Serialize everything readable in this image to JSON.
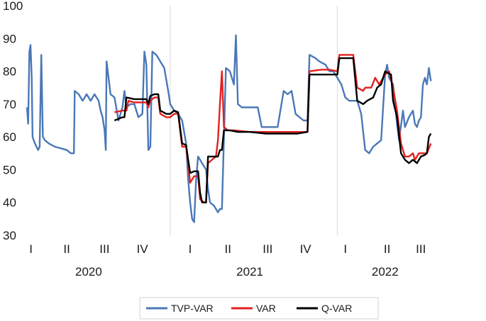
{
  "chart_data": {
    "type": "line",
    "title": "",
    "xlabel": "",
    "ylabel": "",
    "ylim": [
      30,
      100
    ],
    "yticks": [
      30,
      40,
      50,
      60,
      70,
      80,
      90,
      100
    ],
    "x_range": [
      0,
      11.5
    ],
    "quarter_ticks": [
      {
        "label": "I",
        "x": 0.1
      },
      {
        "label": "II",
        "x": 1.0
      },
      {
        "label": "III",
        "x": 1.95
      },
      {
        "label": "IV",
        "x": 2.9
      },
      {
        "label": "I",
        "x": 4.1
      },
      {
        "label": "II",
        "x": 5.05
      },
      {
        "label": "III",
        "x": 6.05
      },
      {
        "label": "IV",
        "x": 7.0
      },
      {
        "label": "I",
        "x": 8.0
      },
      {
        "label": "II",
        "x": 9.05
      },
      {
        "label": "III",
        "x": 9.9
      }
    ],
    "year_labels": [
      {
        "label": "2020",
        "x": 1.55
      },
      {
        "label": "2021",
        "x": 5.6
      },
      {
        "label": "2022",
        "x": 9.0
      }
    ],
    "year_dividers": [
      3.6,
      7.8
    ],
    "grid": false,
    "legend_position": "bottom",
    "series": [
      {
        "name": "TVP-VAR",
        "color": "#4a78b8",
        "points": [
          [
            0.0,
            69
          ],
          [
            0.03,
            64
          ],
          [
            0.06,
            86
          ],
          [
            0.09,
            88
          ],
          [
            0.12,
            78
          ],
          [
            0.14,
            60
          ],
          [
            0.2,
            58
          ],
          [
            0.28,
            56
          ],
          [
            0.32,
            57
          ],
          [
            0.36,
            85
          ],
          [
            0.4,
            60
          ],
          [
            0.45,
            59
          ],
          [
            0.55,
            58
          ],
          [
            0.7,
            57
          ],
          [
            0.85,
            56.5
          ],
          [
            1.0,
            56
          ],
          [
            1.1,
            55
          ],
          [
            1.18,
            55
          ],
          [
            1.2,
            74
          ],
          [
            1.3,
            73
          ],
          [
            1.4,
            71
          ],
          [
            1.5,
            73
          ],
          [
            1.6,
            71
          ],
          [
            1.7,
            73
          ],
          [
            1.8,
            71
          ],
          [
            1.85,
            68
          ],
          [
            1.9,
            66
          ],
          [
            1.95,
            62
          ],
          [
            1.98,
            56
          ],
          [
            2.0,
            83
          ],
          [
            2.05,
            78
          ],
          [
            2.1,
            73
          ],
          [
            2.2,
            72
          ],
          [
            2.3,
            65
          ],
          [
            2.4,
            69
          ],
          [
            2.45,
            74
          ],
          [
            2.5,
            69
          ],
          [
            2.6,
            70
          ],
          [
            2.7,
            70
          ],
          [
            2.8,
            66
          ],
          [
            2.9,
            67
          ],
          [
            2.95,
            86
          ],
          [
            3.0,
            82
          ],
          [
            3.05,
            56
          ],
          [
            3.1,
            57
          ],
          [
            3.15,
            86
          ],
          [
            3.25,
            85
          ],
          [
            3.35,
            83
          ],
          [
            3.45,
            81
          ],
          [
            3.55,
            74
          ],
          [
            3.6,
            70
          ],
          [
            3.7,
            68
          ],
          [
            3.8,
            67
          ],
          [
            3.9,
            65
          ],
          [
            4.0,
            58
          ],
          [
            4.05,
            47
          ],
          [
            4.1,
            40
          ],
          [
            4.15,
            35
          ],
          [
            4.2,
            34
          ],
          [
            4.25,
            47
          ],
          [
            4.3,
            54
          ],
          [
            4.4,
            52
          ],
          [
            4.5,
            50
          ],
          [
            4.55,
            44
          ],
          [
            4.6,
            40
          ],
          [
            4.7,
            39
          ],
          [
            4.8,
            37
          ],
          [
            4.85,
            38
          ],
          [
            4.9,
            38
          ],
          [
            5.0,
            81
          ],
          [
            5.1,
            80
          ],
          [
            5.2,
            76
          ],
          [
            5.25,
            91
          ],
          [
            5.3,
            70
          ],
          [
            5.4,
            69
          ],
          [
            5.6,
            69
          ],
          [
            5.8,
            69
          ],
          [
            5.9,
            63
          ],
          [
            6.1,
            63
          ],
          [
            6.3,
            63
          ],
          [
            6.45,
            74
          ],
          [
            6.55,
            73
          ],
          [
            6.65,
            74
          ],
          [
            6.75,
            67
          ],
          [
            6.85,
            66
          ],
          [
            6.95,
            65
          ],
          [
            7.05,
            65
          ],
          [
            7.1,
            85
          ],
          [
            7.25,
            84
          ],
          [
            7.35,
            83
          ],
          [
            7.5,
            82
          ],
          [
            7.6,
            80
          ],
          [
            7.7,
            80
          ],
          [
            7.8,
            78
          ],
          [
            7.9,
            76
          ],
          [
            8.0,
            72
          ],
          [
            8.1,
            71
          ],
          [
            8.2,
            71
          ],
          [
            8.3,
            71
          ],
          [
            8.4,
            67
          ],
          [
            8.5,
            56
          ],
          [
            8.6,
            55
          ],
          [
            8.7,
            57
          ],
          [
            8.8,
            58
          ],
          [
            8.9,
            59
          ],
          [
            9.0,
            79
          ],
          [
            9.05,
            82
          ],
          [
            9.1,
            78
          ],
          [
            9.2,
            76
          ],
          [
            9.3,
            64
          ],
          [
            9.35,
            59
          ],
          [
            9.45,
            68
          ],
          [
            9.5,
            63
          ],
          [
            9.6,
            66
          ],
          [
            9.7,
            68
          ],
          [
            9.75,
            64
          ],
          [
            9.8,
            63
          ],
          [
            9.85,
            65
          ],
          [
            9.9,
            66
          ],
          [
            9.95,
            76
          ],
          [
            10.0,
            78
          ],
          [
            10.05,
            76
          ],
          [
            10.1,
            81
          ],
          [
            10.15,
            77
          ]
        ]
      },
      {
        "name": "VAR",
        "color": "#e32020",
        "points": [
          [
            2.2,
            67.5
          ],
          [
            2.4,
            68
          ],
          [
            2.5,
            68
          ],
          [
            2.55,
            71
          ],
          [
            2.7,
            70.5
          ],
          [
            2.85,
            70.5
          ],
          [
            3.0,
            70.5
          ],
          [
            3.05,
            69
          ],
          [
            3.1,
            71
          ],
          [
            3.2,
            72
          ],
          [
            3.3,
            72
          ],
          [
            3.35,
            67
          ],
          [
            3.5,
            66
          ],
          [
            3.6,
            66
          ],
          [
            3.7,
            67
          ],
          [
            3.8,
            67
          ],
          [
            3.9,
            57
          ],
          [
            4.0,
            57
          ],
          [
            4.05,
            52
          ],
          [
            4.1,
            46
          ],
          [
            4.2,
            48
          ],
          [
            4.3,
            48
          ],
          [
            4.35,
            41
          ],
          [
            4.45,
            40
          ],
          [
            4.5,
            40
          ],
          [
            4.55,
            52
          ],
          [
            4.65,
            53
          ],
          [
            4.75,
            54
          ],
          [
            4.8,
            59
          ],
          [
            4.85,
            70
          ],
          [
            4.9,
            80
          ],
          [
            4.95,
            63
          ],
          [
            5.05,
            62
          ],
          [
            5.2,
            62
          ],
          [
            5.6,
            61.5
          ],
          [
            6.0,
            61.5
          ],
          [
            6.4,
            61.5
          ],
          [
            6.8,
            61.5
          ],
          [
            7.05,
            61.5
          ],
          [
            7.1,
            80
          ],
          [
            7.4,
            80.5
          ],
          [
            7.6,
            80.5
          ],
          [
            7.8,
            80
          ],
          [
            7.85,
            85
          ],
          [
            8.0,
            85
          ],
          [
            8.2,
            85
          ],
          [
            8.3,
            75
          ],
          [
            8.45,
            74
          ],
          [
            8.5,
            75
          ],
          [
            8.65,
            75
          ],
          [
            8.75,
            78
          ],
          [
            8.85,
            76
          ],
          [
            9.0,
            79
          ],
          [
            9.1,
            80
          ],
          [
            9.2,
            75
          ],
          [
            9.3,
            68
          ],
          [
            9.4,
            58
          ],
          [
            9.5,
            54
          ],
          [
            9.6,
            54
          ],
          [
            9.7,
            55
          ],
          [
            9.75,
            53
          ],
          [
            9.85,
            55
          ],
          [
            9.95,
            55
          ],
          [
            10.05,
            55
          ],
          [
            10.15,
            58
          ]
        ]
      },
      {
        "name": "Q-VAR",
        "color": "#000000",
        "points": [
          [
            2.2,
            65
          ],
          [
            2.3,
            65.5
          ],
          [
            2.4,
            66
          ],
          [
            2.45,
            66
          ],
          [
            2.5,
            72
          ],
          [
            2.7,
            71.5
          ],
          [
            2.9,
            71.5
          ],
          [
            3.0,
            71.5
          ],
          [
            3.05,
            70
          ],
          [
            3.1,
            72.5
          ],
          [
            3.2,
            73
          ],
          [
            3.3,
            73
          ],
          [
            3.35,
            68
          ],
          [
            3.5,
            67
          ],
          [
            3.6,
            67
          ],
          [
            3.7,
            68
          ],
          [
            3.8,
            67.5
          ],
          [
            3.9,
            58
          ],
          [
            4.0,
            57.5
          ],
          [
            4.05,
            53
          ],
          [
            4.1,
            49
          ],
          [
            4.2,
            49.5
          ],
          [
            4.3,
            49.5
          ],
          [
            4.35,
            43
          ],
          [
            4.4,
            40
          ],
          [
            4.5,
            40
          ],
          [
            4.55,
            54
          ],
          [
            4.7,
            54
          ],
          [
            4.8,
            54
          ],
          [
            4.85,
            56
          ],
          [
            4.9,
            56
          ],
          [
            4.95,
            62
          ],
          [
            5.1,
            62
          ],
          [
            5.3,
            61.5
          ],
          [
            5.6,
            61.5
          ],
          [
            6.0,
            61
          ],
          [
            6.4,
            61
          ],
          [
            6.8,
            61
          ],
          [
            7.05,
            61.5
          ],
          [
            7.1,
            79
          ],
          [
            7.4,
            79
          ],
          [
            7.6,
            79
          ],
          [
            7.8,
            79
          ],
          [
            7.85,
            84
          ],
          [
            8.0,
            84
          ],
          [
            8.2,
            84
          ],
          [
            8.3,
            71
          ],
          [
            8.45,
            70
          ],
          [
            8.55,
            71
          ],
          [
            8.7,
            72
          ],
          [
            8.8,
            75
          ],
          [
            8.9,
            76
          ],
          [
            9.0,
            80
          ],
          [
            9.15,
            79
          ],
          [
            9.2,
            71
          ],
          [
            9.3,
            66
          ],
          [
            9.4,
            55
          ],
          [
            9.5,
            53
          ],
          [
            9.6,
            52
          ],
          [
            9.7,
            53
          ],
          [
            9.8,
            52
          ],
          [
            9.9,
            54
          ],
          [
            10.0,
            54.5
          ],
          [
            10.05,
            55
          ],
          [
            10.1,
            60
          ],
          [
            10.15,
            61
          ]
        ]
      }
    ]
  }
}
